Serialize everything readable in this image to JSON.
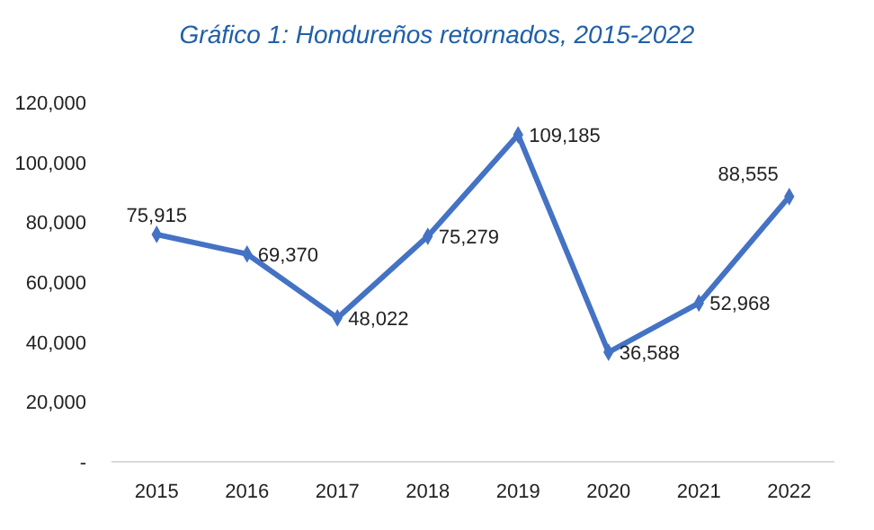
{
  "chart_data": {
    "type": "line",
    "title": "Gráfico 1: Hondureños retornados, 2015-2022",
    "categories": [
      "2015",
      "2016",
      "2017",
      "2018",
      "2019",
      "2020",
      "2021",
      "2022"
    ],
    "series": [
      {
        "color": "#4472c4",
        "values": [
          75915,
          69370,
          48022,
          75279,
          109185,
          36588,
          52968,
          88555
        ],
        "value_labels": [
          "75,915",
          "69,370",
          "48,022",
          "75,279",
          "109,185",
          "36,588",
          "52,968",
          "88,555"
        ]
      }
    ],
    "ylim": [
      0,
      120000
    ],
    "yticks": [
      {
        "value": 0,
        "label": "-"
      },
      {
        "value": 20000,
        "label": "20,000"
      },
      {
        "value": 40000,
        "label": "40,000"
      },
      {
        "value": 60000,
        "label": "60,000"
      },
      {
        "value": 80000,
        "label": "80,000"
      },
      {
        "value": 100000,
        "label": "100,000"
      },
      {
        "value": 120000,
        "label": "120,000"
      }
    ],
    "grid": false,
    "marker": "diamond",
    "line_style": "solid"
  }
}
